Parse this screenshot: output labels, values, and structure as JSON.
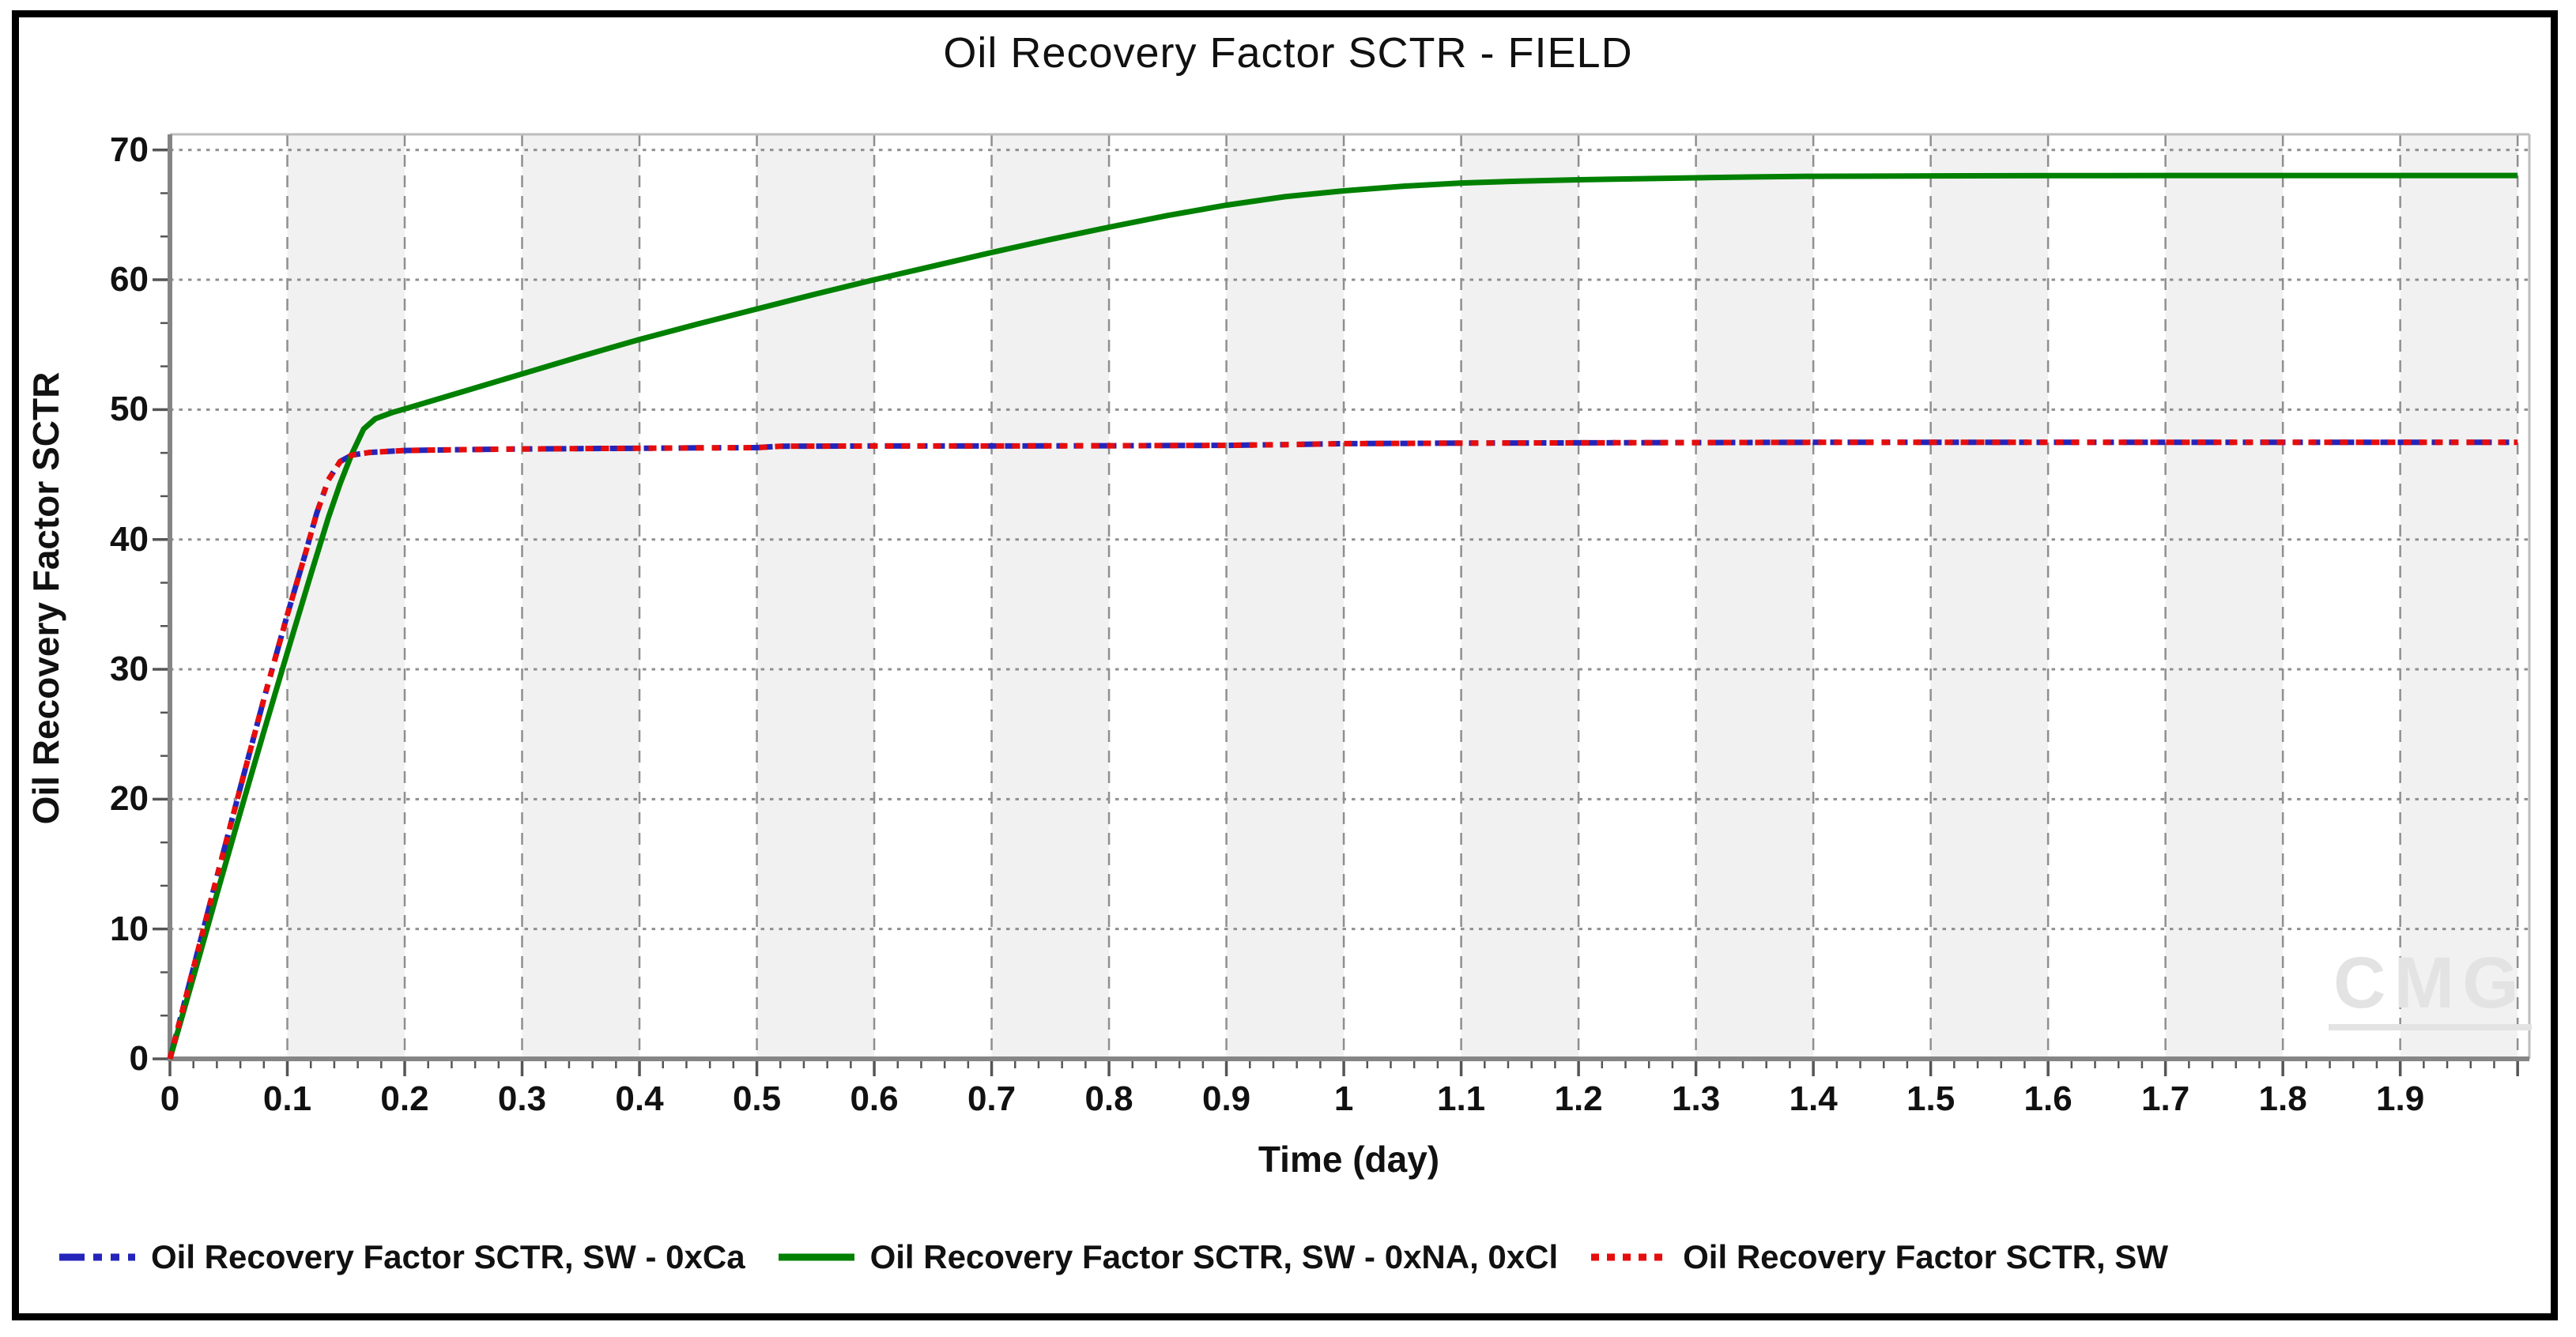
{
  "chart_data": {
    "type": "line",
    "title": "Oil Recovery Factor SCTR - FIELD",
    "xlabel": "Time (day)",
    "ylabel": "Oil Recovery Factor SCTR",
    "xlim": [
      0,
      2.01
    ],
    "ylim": [
      0,
      71.2
    ],
    "grid": {
      "vertical_gridline_values": [
        0.1,
        0.2,
        0.3,
        0.4,
        0.5,
        0.6,
        0.7,
        0.8,
        0.9,
        1.0,
        1.1,
        1.2,
        1.3,
        1.4,
        1.5,
        1.6,
        1.7,
        1.8,
        1.9,
        2.0
      ],
      "horizontal_gridline_values": [
        10,
        20,
        30,
        40,
        50,
        60,
        70
      ],
      "gridline_color": "#8f8f8f",
      "band_color": "#f1f1f1",
      "shaded_intervals": [
        [
          0.1,
          0.2
        ],
        [
          0.3,
          0.4
        ],
        [
          0.5,
          0.6
        ],
        [
          0.7,
          0.8
        ],
        [
          0.9,
          1.0
        ],
        [
          1.1,
          1.2
        ],
        [
          1.3,
          1.4
        ],
        [
          1.5,
          1.6
        ],
        [
          1.7,
          1.8
        ],
        [
          1.9,
          2.0
        ]
      ]
    },
    "x_ticks": {
      "values": [
        0,
        0.1,
        0.2,
        0.3,
        0.4,
        0.5,
        0.6,
        0.7,
        0.8,
        0.9,
        1.0,
        1.1,
        1.2,
        1.3,
        1.4,
        1.5,
        1.6,
        1.7,
        1.8,
        1.9
      ],
      "labels": [
        "0",
        "0.1",
        "0.2",
        "0.3",
        "0.4",
        "0.5",
        "0.6",
        "0.7",
        "0.8",
        "0.9",
        "1",
        "1.1",
        "1.2",
        "1.3",
        "1.4",
        "1.5",
        "1.6",
        "1.7",
        "1.8",
        "1.9"
      ],
      "minor_step": 0.02,
      "minor_max": 2.0
    },
    "y_ticks": {
      "values": [
        0,
        10,
        20,
        30,
        40,
        50,
        60,
        70
      ],
      "labels": [
        "0",
        "10",
        "20",
        "30",
        "40",
        "50",
        "60",
        "70"
      ],
      "minor_step_fraction": 3
    },
    "axis_colors": {
      "main": "#858585",
      "border": "#bdbdbd",
      "tick": "#555555"
    },
    "legend_position": "bottom",
    "watermark": "CMG",
    "series": [
      {
        "name": "Oil Recovery Factor SCTR, SW - 0xCa",
        "color": "#2424bb",
        "style": "dash-dot-dot",
        "points": [
          [
            0,
            0
          ],
          [
            0.02,
            7
          ],
          [
            0.04,
            14
          ],
          [
            0.06,
            20.9
          ],
          [
            0.08,
            27.7
          ],
          [
            0.1,
            34.2
          ],
          [
            0.115,
            38.8
          ],
          [
            0.125,
            42.0
          ],
          [
            0.135,
            44.6
          ],
          [
            0.145,
            46.0
          ],
          [
            0.155,
            46.5
          ],
          [
            0.17,
            46.7
          ],
          [
            0.2,
            46.85
          ],
          [
            0.25,
            46.92
          ],
          [
            0.3,
            46.97
          ],
          [
            0.35,
            47.0
          ],
          [
            0.4,
            47.02
          ],
          [
            0.45,
            47.05
          ],
          [
            0.5,
            47.07
          ],
          [
            0.52,
            47.18
          ],
          [
            0.6,
            47.2
          ],
          [
            0.7,
            47.2
          ],
          [
            0.8,
            47.22
          ],
          [
            0.9,
            47.25
          ],
          [
            0.95,
            47.3
          ],
          [
            1.0,
            47.38
          ],
          [
            1.05,
            47.4
          ],
          [
            1.1,
            47.42
          ],
          [
            1.2,
            47.44
          ],
          [
            1.3,
            47.46
          ],
          [
            1.4,
            47.48
          ],
          [
            1.5,
            47.48
          ],
          [
            1.6,
            47.48
          ],
          [
            1.7,
            47.48
          ],
          [
            1.8,
            47.48
          ],
          [
            1.9,
            47.48
          ],
          [
            2.0,
            47.48
          ]
        ]
      },
      {
        "name": "Oil Recovery Factor SCTR, SW - 0xNA, 0xCl",
        "color": "#008000",
        "style": "solid",
        "points": [
          [
            0,
            0
          ],
          [
            0.02,
            6.3
          ],
          [
            0.04,
            12.7
          ],
          [
            0.06,
            19.0
          ],
          [
            0.08,
            25.2
          ],
          [
            0.1,
            31.3
          ],
          [
            0.12,
            37.3
          ],
          [
            0.135,
            41.7
          ],
          [
            0.145,
            44.3
          ],
          [
            0.155,
            46.6
          ],
          [
            0.165,
            48.5
          ],
          [
            0.175,
            49.3
          ],
          [
            0.19,
            49.8
          ],
          [
            0.2,
            50.05
          ],
          [
            0.25,
            51.4
          ],
          [
            0.3,
            52.75
          ],
          [
            0.35,
            54.1
          ],
          [
            0.4,
            55.4
          ],
          [
            0.45,
            56.6
          ],
          [
            0.5,
            57.75
          ],
          [
            0.55,
            58.9
          ],
          [
            0.6,
            60.0
          ],
          [
            0.65,
            61.05
          ],
          [
            0.7,
            62.1
          ],
          [
            0.75,
            63.1
          ],
          [
            0.8,
            64.05
          ],
          [
            0.85,
            64.95
          ],
          [
            0.9,
            65.75
          ],
          [
            0.95,
            66.4
          ],
          [
            1.0,
            66.85
          ],
          [
            1.05,
            67.2
          ],
          [
            1.1,
            67.45
          ],
          [
            1.15,
            67.6
          ],
          [
            1.2,
            67.7
          ],
          [
            1.25,
            67.78
          ],
          [
            1.3,
            67.85
          ],
          [
            1.35,
            67.92
          ],
          [
            1.4,
            67.97
          ],
          [
            1.5,
            68.0
          ],
          [
            1.6,
            68.02
          ],
          [
            1.7,
            68.03
          ],
          [
            1.8,
            68.03
          ],
          [
            1.9,
            68.03
          ],
          [
            2.0,
            68.03
          ]
        ]
      },
      {
        "name": "Oil Recovery Factor SCTR, SW",
        "color": "#e60d0d",
        "style": "dotted",
        "points": [
          [
            0,
            0
          ],
          [
            0.02,
            7
          ],
          [
            0.04,
            14
          ],
          [
            0.06,
            20.9
          ],
          [
            0.08,
            27.7
          ],
          [
            0.1,
            34.2
          ],
          [
            0.115,
            38.8
          ],
          [
            0.125,
            42.0
          ],
          [
            0.135,
            44.6
          ],
          [
            0.145,
            46.0
          ],
          [
            0.155,
            46.5
          ],
          [
            0.17,
            46.7
          ],
          [
            0.2,
            46.85
          ],
          [
            0.25,
            46.92
          ],
          [
            0.3,
            46.97
          ],
          [
            0.35,
            47.0
          ],
          [
            0.4,
            47.02
          ],
          [
            0.45,
            47.05
          ],
          [
            0.5,
            47.07
          ],
          [
            0.52,
            47.18
          ],
          [
            0.6,
            47.2
          ],
          [
            0.7,
            47.2
          ],
          [
            0.8,
            47.22
          ],
          [
            0.9,
            47.25
          ],
          [
            0.95,
            47.3
          ],
          [
            1.0,
            47.38
          ],
          [
            1.05,
            47.4
          ],
          [
            1.1,
            47.42
          ],
          [
            1.2,
            47.44
          ],
          [
            1.3,
            47.46
          ],
          [
            1.4,
            47.48
          ],
          [
            1.5,
            47.48
          ],
          [
            1.6,
            47.48
          ],
          [
            1.7,
            47.48
          ],
          [
            1.8,
            47.48
          ],
          [
            1.9,
            47.48
          ],
          [
            2.0,
            47.48
          ]
        ]
      }
    ]
  }
}
